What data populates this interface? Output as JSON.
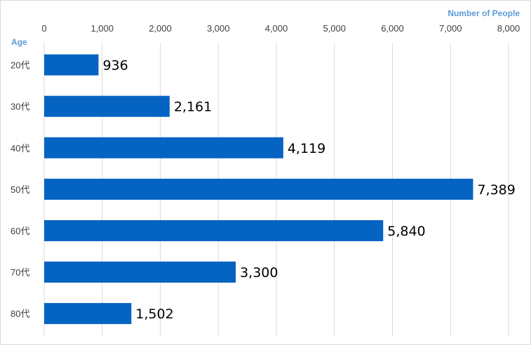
{
  "chart_data": {
    "type": "bar",
    "orientation": "horizontal",
    "xlabel": "Number of People",
    "ylabel": "Age",
    "categories": [
      "20代",
      "30代",
      "40代",
      "50代",
      "60代",
      "70代",
      "80代"
    ],
    "values": [
      936,
      2161,
      4119,
      7389,
      5840,
      3300,
      1502
    ],
    "data_labels": [
      "936",
      "2,161",
      "4,119",
      "7,389",
      "5,840",
      "3,300",
      "1,502"
    ],
    "xlim": [
      0,
      8000
    ],
    "xticks": [
      0,
      1000,
      2000,
      3000,
      4000,
      5000,
      6000,
      7000,
      8000
    ],
    "xtick_labels": [
      "0",
      "1,000",
      "2,000",
      "3,000",
      "4,000",
      "5,000",
      "6,000",
      "7,000",
      "8,000"
    ],
    "x_axis_position": "top",
    "grid": true,
    "bar_color": "#0563C1",
    "axis_title_color": "#5B9BD5"
  }
}
